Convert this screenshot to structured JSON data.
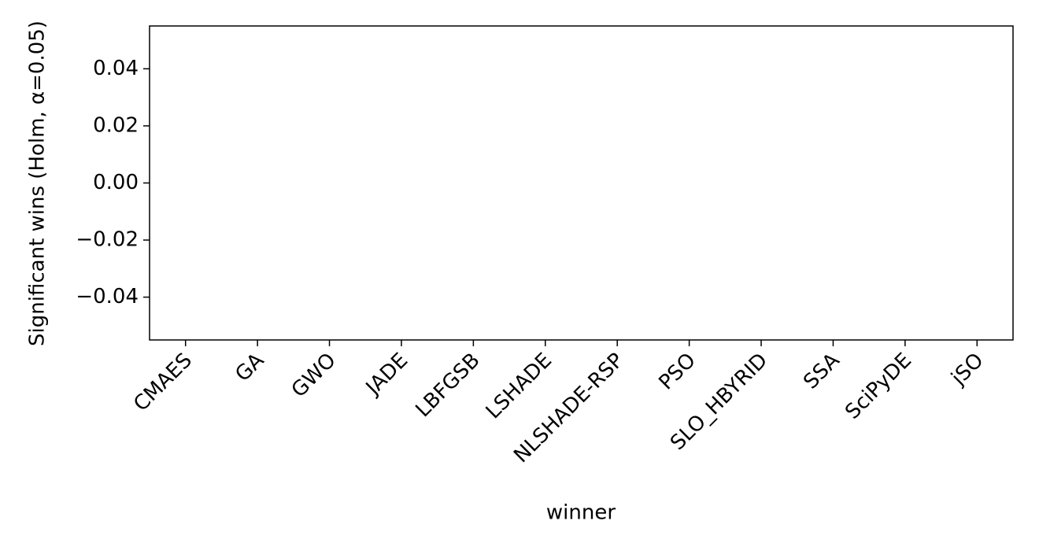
{
  "chart_data": {
    "type": "bar",
    "categories": [
      "CMAES",
      "GA",
      "GWO",
      "JADE",
      "LBFGSB",
      "LSHADE",
      "NLSHADE-RSP",
      "PSO",
      "SLO_HBYRID",
      "SSA",
      "SciPyDE",
      "jSO"
    ],
    "values": [
      0,
      0,
      0,
      0,
      0,
      0,
      0,
      0,
      0,
      0,
      0,
      0
    ],
    "color": "#1f77b4",
    "x_label": "winner",
    "y_label": "Significant wins (Holm, α=0.05)",
    "ylim": [
      -0.055,
      0.055
    ],
    "yticks": [
      {
        "value": -0.04,
        "label": "−0.04"
      },
      {
        "value": -0.02,
        "label": "−0.02"
      },
      {
        "value": 0,
        "label": "0.00"
      },
      0.02,
      0.04
    ],
    "grid": false
  }
}
